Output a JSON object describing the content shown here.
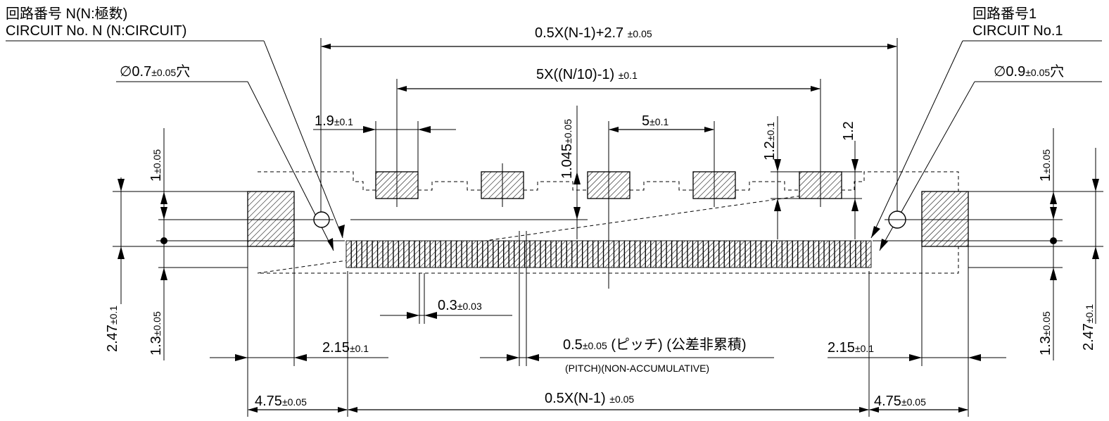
{
  "labels": {
    "circuit_n_jp": "回路番号 N(N:極数)",
    "circuit_n_en": "CIRCUIT No. N (N:CIRCUIT)",
    "circuit_1_jp": "回路番号1",
    "circuit_1_en": "CIRCUIT No.1",
    "hole_left_val": "∅0.7",
    "hole_left_tol": "±0.05",
    "hole_left_suffix": "穴",
    "hole_right_val": "∅0.9",
    "hole_right_tol": "±0.05",
    "hole_right_suffix": "穴",
    "overall_width": "0.5X(N-1)+2.7",
    "overall_width_tol": "±0.05",
    "pad_span": "5X((N/10)-1)",
    "pad_span_tol": "±0.1",
    "pad_width": "1.9",
    "pad_width_tol": "±0.1",
    "pad_offset": "1.045",
    "pad_offset_tol": "±0.05",
    "pad_pitch": "5",
    "pad_pitch_tol": "±0.1",
    "pad_height": "1.2",
    "pad_height_tol": "±0.1",
    "pad_height2": "1.2",
    "left_v1": "1",
    "left_v1_tol": "±0.05",
    "left_v2": "2.47",
    "left_v2_tol": "±0.1",
    "left_v3": "1.3",
    "left_v3_tol": "±0.05",
    "right_v1": "1",
    "right_v1_tol": "±0.05",
    "right_v2": "2.47",
    "right_v2_tol": "±0.1",
    "right_v3": "1.3",
    "right_v3_tol": "±0.05",
    "pin_width": "0.3",
    "pin_width_tol": "±0.03",
    "left_gap": "2.15",
    "left_gap_tol": "±0.1",
    "right_gap": "2.15",
    "right_gap_tol": "±0.1",
    "pitch_val": "0.5",
    "pitch_tol": "±0.05",
    "pitch_jp": "(ピッチ) (公差非累積)",
    "pitch_en": "(PITCH)(NON-ACCUMULATIVE)",
    "left_end": "4.75",
    "left_end_tol": "±0.05",
    "pin_span": "0.5X(N-1)",
    "pin_span_tol": "±0.05",
    "right_end": "4.75",
    "right_end_tol": "±0.05"
  }
}
